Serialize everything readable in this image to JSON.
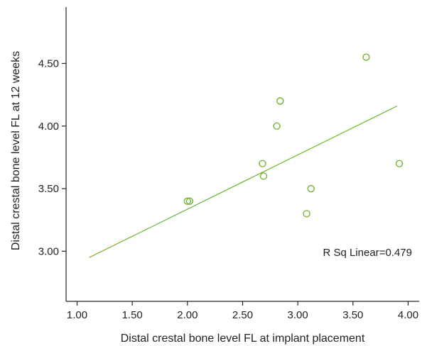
{
  "chart_data": {
    "type": "scatter",
    "title": "",
    "xlabel": "Distal crestal bone level FL at implant placement",
    "ylabel": "Distal crestal bone level FL at 12 weeks",
    "xlim": [
      0.9,
      4.1
    ],
    "ylim": [
      2.6,
      4.95
    ],
    "x_ticks": [
      1.0,
      1.5,
      2.0,
      2.5,
      3.0,
      3.5,
      4.0
    ],
    "x_tick_labels": [
      "1.00",
      "1.50",
      "2.00",
      "2.50",
      "3.00",
      "3.50",
      "4.00"
    ],
    "y_ticks": [
      3.0,
      3.5,
      4.0,
      4.5
    ],
    "y_tick_labels": [
      "3.00",
      "3.50",
      "4.00",
      "4.50"
    ],
    "grid": false,
    "points": [
      {
        "x": 2.0,
        "y": 3.4
      },
      {
        "x": 2.02,
        "y": 3.4
      },
      {
        "x": 2.69,
        "y": 3.6
      },
      {
        "x": 2.68,
        "y": 3.7
      },
      {
        "x": 2.81,
        "y": 4.0
      },
      {
        "x": 2.84,
        "y": 4.2
      },
      {
        "x": 3.08,
        "y": 3.3
      },
      {
        "x": 3.12,
        "y": 3.5
      },
      {
        "x": 3.62,
        "y": 4.55
      },
      {
        "x": 3.92,
        "y": 3.7
      }
    ],
    "fit_line": {
      "x": [
        1.11,
        3.9
      ],
      "y": [
        2.95,
        4.16
      ]
    },
    "annotation": "R Sq Linear=0.479",
    "colors": {
      "points": "#6ab023",
      "fit_line": "#6ab023",
      "axis": "#222222"
    }
  }
}
